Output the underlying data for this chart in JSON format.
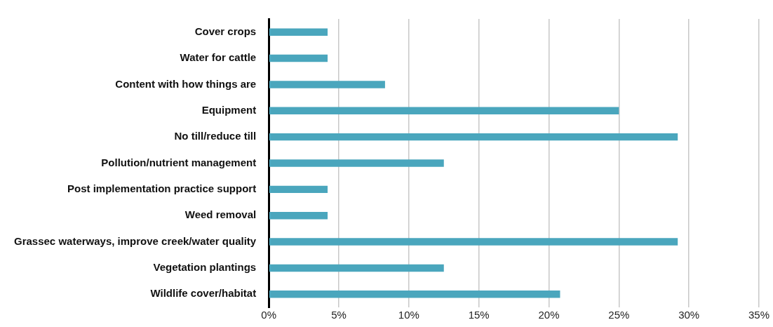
{
  "chart_data": {
    "type": "bar",
    "orientation": "horizontal",
    "categories": [
      "Cover crops",
      "Water for cattle",
      "Content with how things are",
      "Equipment",
      "No till/reduce till",
      "Pollution/nutrient management",
      "Post implementation practice support",
      "Weed removal",
      "Grassec waterways, improve creek/water quality",
      "Vegetation plantings",
      "Wildlife cover/habitat"
    ],
    "values": [
      4.2,
      4.2,
      8.3,
      25,
      29.2,
      12.5,
      4.2,
      4.2,
      29.2,
      12.5,
      20.8
    ],
    "color": "#4aa6bd",
    "xlim": [
      0,
      35
    ],
    "xticks": [
      {
        "value": 0,
        "label": "0%"
      },
      {
        "value": 5,
        "label": "5%"
      },
      {
        "value": 10,
        "label": "10%"
      },
      {
        "value": 15,
        "label": "15%"
      },
      {
        "value": 20,
        "label": "20%"
      },
      {
        "value": 25,
        "label": "25%"
      },
      {
        "value": 30,
        "label": "30%"
      },
      {
        "value": 35,
        "label": "35%"
      }
    ],
    "grid": "x",
    "legend": false
  }
}
